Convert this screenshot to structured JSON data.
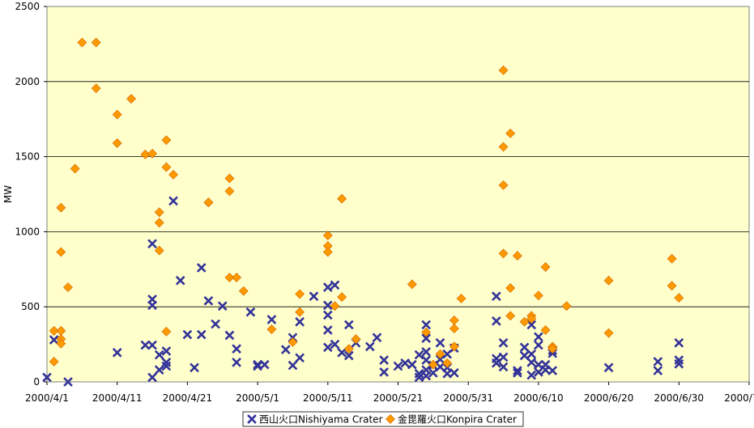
{
  "chart_data": {
    "type": "scatter",
    "title": "",
    "xlabel": "",
    "ylabel": "MW",
    "xlim": [
      "2000-04-01",
      "2000-07-10"
    ],
    "ylim": [
      0,
      2500
    ],
    "x_ticks": [
      "2000/4/1",
      "2000/4/11",
      "2000/4/21",
      "2000/5/1",
      "2000/5/11",
      "2000/5/21",
      "2000/5/31",
      "2000/6/10",
      "2000/6/20",
      "2000/6/30",
      "2000/7/10"
    ],
    "y_ticks": [
      0,
      500,
      1000,
      1500,
      2000,
      2500
    ],
    "grid": "horizontal",
    "legend_position": "bottom",
    "plot_background": "#FFFFCC",
    "series": [
      {
        "name": "西山火口Nishiyama Crater",
        "color": "#333399",
        "marker": "x",
        "points": [
          [
            "2000-04-01",
            30
          ],
          [
            "2000-04-02",
            280
          ],
          [
            "2000-04-04",
            0
          ],
          [
            "2000-04-11",
            195
          ],
          [
            "2000-04-15",
            245
          ],
          [
            "2000-04-16",
            920
          ],
          [
            "2000-04-16",
            550
          ],
          [
            "2000-04-16",
            510
          ],
          [
            "2000-04-16",
            245
          ],
          [
            "2000-04-16",
            30
          ],
          [
            "2000-04-17",
            80
          ],
          [
            "2000-04-17",
            180
          ],
          [
            "2000-04-18",
            205
          ],
          [
            "2000-04-18",
            105
          ],
          [
            "2000-04-18",
            130
          ],
          [
            "2000-04-19",
            1205
          ],
          [
            "2000-04-20",
            675
          ],
          [
            "2000-04-21",
            315
          ],
          [
            "2000-04-22",
            95
          ],
          [
            "2000-04-23",
            760
          ],
          [
            "2000-04-23",
            315
          ],
          [
            "2000-04-24",
            540
          ],
          [
            "2000-04-25",
            385
          ],
          [
            "2000-04-26",
            505
          ],
          [
            "2000-04-27",
            310
          ],
          [
            "2000-04-28",
            220
          ],
          [
            "2000-04-28",
            130
          ],
          [
            "2000-04-30",
            465
          ],
          [
            "2000-05-01",
            105
          ],
          [
            "2000-05-01",
            115
          ],
          [
            "2000-05-02",
            115
          ],
          [
            "2000-05-03",
            415
          ],
          [
            "2000-05-05",
            215
          ],
          [
            "2000-05-06",
            110
          ],
          [
            "2000-05-06",
            295
          ],
          [
            "2000-05-07",
            160
          ],
          [
            "2000-05-07",
            400
          ],
          [
            "2000-05-09",
            570
          ],
          [
            "2000-05-11",
            630
          ],
          [
            "2000-05-11",
            510
          ],
          [
            "2000-05-11",
            445
          ],
          [
            "2000-05-11",
            345
          ],
          [
            "2000-05-11",
            230
          ],
          [
            "2000-05-12",
            645
          ],
          [
            "2000-05-12",
            250
          ],
          [
            "2000-05-13",
            195
          ],
          [
            "2000-05-14",
            380
          ],
          [
            "2000-05-14",
            175
          ],
          [
            "2000-05-15",
            260
          ],
          [
            "2000-05-17",
            235
          ],
          [
            "2000-05-18",
            295
          ],
          [
            "2000-05-19",
            145
          ],
          [
            "2000-05-19",
            65
          ],
          [
            "2000-05-21",
            105
          ],
          [
            "2000-05-22",
            125
          ],
          [
            "2000-05-23",
            115
          ],
          [
            "2000-05-24",
            180
          ],
          [
            "2000-05-24",
            55
          ],
          [
            "2000-05-24",
            30
          ],
          [
            "2000-05-25",
            380
          ],
          [
            "2000-05-25",
            290
          ],
          [
            "2000-05-25",
            200
          ],
          [
            "2000-05-25",
            145
          ],
          [
            "2000-05-25",
            80
          ],
          [
            "2000-05-25",
            40
          ],
          [
            "2000-05-26",
            60
          ],
          [
            "2000-05-26",
            110
          ],
          [
            "2000-05-27",
            150
          ],
          [
            "2000-05-27",
            260
          ],
          [
            "2000-05-27",
            100
          ],
          [
            "2000-05-28",
            55
          ],
          [
            "2000-05-28",
            95
          ],
          [
            "2000-05-28",
            185
          ],
          [
            "2000-05-29",
            60
          ],
          [
            "2000-05-29",
            225
          ],
          [
            "2000-06-04",
            570
          ],
          [
            "2000-06-04",
            405
          ],
          [
            "2000-06-04",
            155
          ],
          [
            "2000-06-04",
            125
          ],
          [
            "2000-06-05",
            165
          ],
          [
            "2000-06-05",
            100
          ],
          [
            "2000-06-05",
            260
          ],
          [
            "2000-06-07",
            75
          ],
          [
            "2000-06-07",
            60
          ],
          [
            "2000-06-08",
            230
          ],
          [
            "2000-06-08",
            175
          ],
          [
            "2000-06-09",
            380
          ],
          [
            "2000-06-09",
            185
          ],
          [
            "2000-06-09",
            130
          ],
          [
            "2000-06-09",
            45
          ],
          [
            "2000-06-10",
            300
          ],
          [
            "2000-06-10",
            245
          ],
          [
            "2000-06-10",
            115
          ],
          [
            "2000-06-10",
            65
          ],
          [
            "2000-06-11",
            115
          ],
          [
            "2000-06-11",
            80
          ],
          [
            "2000-06-12",
            210
          ],
          [
            "2000-06-12",
            190
          ],
          [
            "2000-06-12",
            75
          ],
          [
            "2000-06-20",
            95
          ],
          [
            "2000-06-27",
            135
          ],
          [
            "2000-06-27",
            75
          ],
          [
            "2000-06-30",
            260
          ],
          [
            "2000-06-30",
            145
          ],
          [
            "2000-06-30",
            120
          ]
        ]
      },
      {
        "name": "金毘羅火口Konpira Crater",
        "color": "#FF9900",
        "marker": "diamond",
        "points": [
          [
            "2000-04-02",
            135
          ],
          [
            "2000-04-02",
            340
          ],
          [
            "2000-04-03",
            340
          ],
          [
            "2000-04-03",
            285
          ],
          [
            "2000-04-03",
            255
          ],
          [
            "2000-04-03",
            865
          ],
          [
            "2000-04-03",
            1160
          ],
          [
            "2000-04-04",
            630
          ],
          [
            "2000-04-05",
            1420
          ],
          [
            "2000-04-06",
            2260
          ],
          [
            "2000-04-08",
            2260
          ],
          [
            "2000-04-08",
            1955
          ],
          [
            "2000-04-11",
            1590
          ],
          [
            "2000-04-11",
            1780
          ],
          [
            "2000-04-13",
            1885
          ],
          [
            "2000-04-15",
            1515
          ],
          [
            "2000-04-16",
            1520
          ],
          [
            "2000-04-17",
            1130
          ],
          [
            "2000-04-17",
            1060
          ],
          [
            "2000-04-17",
            875
          ],
          [
            "2000-04-18",
            335
          ],
          [
            "2000-04-18",
            1610
          ],
          [
            "2000-04-18",
            1430
          ],
          [
            "2000-04-19",
            1380
          ],
          [
            "2000-04-24",
            1195
          ],
          [
            "2000-04-24",
            1195
          ],
          [
            "2000-04-27",
            1355
          ],
          [
            "2000-04-27",
            1270
          ],
          [
            "2000-04-27",
            695
          ],
          [
            "2000-04-28",
            695
          ],
          [
            "2000-04-29",
            605
          ],
          [
            "2000-05-03",
            350
          ],
          [
            "2000-05-06",
            265
          ],
          [
            "2000-05-07",
            585
          ],
          [
            "2000-05-07",
            465
          ],
          [
            "2000-05-11",
            975
          ],
          [
            "2000-05-11",
            905
          ],
          [
            "2000-05-11",
            865
          ],
          [
            "2000-05-13",
            1220
          ],
          [
            "2000-05-13",
            565
          ],
          [
            "2000-05-12",
            505
          ],
          [
            "2000-05-14",
            220
          ],
          [
            "2000-05-15",
            285
          ],
          [
            "2000-05-23",
            650
          ],
          [
            "2000-05-25",
            330
          ],
          [
            "2000-05-26",
            115
          ],
          [
            "2000-05-27",
            185
          ],
          [
            "2000-05-28",
            125
          ],
          [
            "2000-05-29",
            235
          ],
          [
            "2000-05-29",
            410
          ],
          [
            "2000-05-29",
            355
          ],
          [
            "2000-05-30",
            555
          ],
          [
            "2000-06-05",
            2075
          ],
          [
            "2000-06-05",
            1565
          ],
          [
            "2000-06-05",
            1310
          ],
          [
            "2000-06-06",
            1655
          ],
          [
            "2000-06-05",
            855
          ],
          [
            "2000-06-06",
            625
          ],
          [
            "2000-06-06",
            440
          ],
          [
            "2000-06-07",
            840
          ],
          [
            "2000-06-08",
            400
          ],
          [
            "2000-06-09",
            440
          ],
          [
            "2000-06-09",
            420
          ],
          [
            "2000-06-11",
            765
          ],
          [
            "2000-06-10",
            575
          ],
          [
            "2000-06-11",
            345
          ],
          [
            "2000-06-12",
            235
          ],
          [
            "2000-06-12",
            220
          ],
          [
            "2000-06-14",
            505
          ],
          [
            "2000-06-20",
            675
          ],
          [
            "2000-06-20",
            325
          ],
          [
            "2000-06-29",
            820
          ],
          [
            "2000-06-29",
            640
          ],
          [
            "2000-06-30",
            560
          ]
        ]
      }
    ]
  }
}
